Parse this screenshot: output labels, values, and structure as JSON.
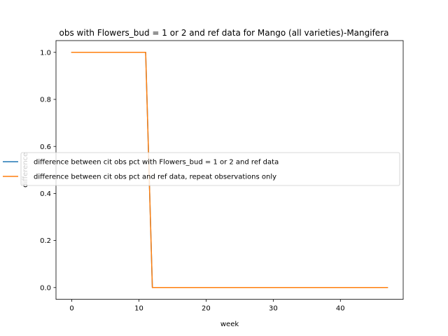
{
  "chart_data": {
    "type": "line",
    "title": "obs with Flowers_bud = 1 or 2 and ref data for Mango (all varieties)-Mangifera",
    "xlabel": "week",
    "ylabel": "difference",
    "xlim": [
      -2.35,
      49.35
    ],
    "ylim": [
      -0.05,
      1.05
    ],
    "xticks": [
      0,
      10,
      20,
      30,
      40
    ],
    "yticks": [
      0.0,
      0.2,
      0.4,
      0.6,
      0.8,
      1.0
    ],
    "xtick_labels": [
      "0",
      "10",
      "20",
      "30",
      "40"
    ],
    "ytick_labels": [
      "0.0",
      "0.2",
      "0.4",
      "0.6",
      "0.8",
      "1.0"
    ],
    "grid": false,
    "legend_position": "center-right",
    "series": [
      {
        "name": "difference between cit obs pct with Flowers_bud = 1 or 2 and ref data",
        "color": "#1f77b4",
        "x": [
          0,
          1,
          2,
          3,
          4,
          5,
          6,
          7,
          8,
          9,
          10,
          11,
          12,
          13,
          14,
          15,
          16,
          17,
          18,
          19,
          20,
          21,
          22,
          23,
          24,
          25,
          26,
          27,
          28,
          29,
          30,
          31,
          32,
          33,
          34,
          35,
          36,
          37,
          38,
          39,
          40,
          41,
          42,
          43,
          44,
          45,
          46,
          47
        ],
        "y": [
          1,
          1,
          1,
          1,
          1,
          1,
          1,
          1,
          1,
          1,
          1,
          1,
          0,
          0,
          0,
          0,
          0,
          0,
          0,
          0,
          0,
          0,
          0,
          0,
          0,
          0,
          0,
          0,
          0,
          0,
          0,
          0,
          0,
          0,
          0,
          0,
          0,
          0,
          0,
          0,
          0,
          0,
          0,
          0,
          0,
          0,
          0,
          0
        ]
      },
      {
        "name": "difference between cit obs pct and ref data, repeat observations only",
        "color": "#ff7f0e",
        "x": [
          0,
          1,
          2,
          3,
          4,
          5,
          6,
          7,
          8,
          9,
          10,
          11,
          12,
          13,
          14,
          15,
          16,
          17,
          18,
          19,
          20,
          21,
          22,
          23,
          24,
          25,
          26,
          27,
          28,
          29,
          30,
          31,
          32,
          33,
          34,
          35,
          36,
          37,
          38,
          39,
          40,
          41,
          42,
          43,
          44,
          45,
          46,
          47
        ],
        "y": [
          1,
          1,
          1,
          1,
          1,
          1,
          1,
          1,
          1,
          1,
          1,
          1,
          0,
          0,
          0,
          0,
          0,
          0,
          0,
          0,
          0,
          0,
          0,
          0,
          0,
          0,
          0,
          0,
          0,
          0,
          0,
          0,
          0,
          0,
          0,
          0,
          0,
          0,
          0,
          0,
          0,
          0,
          0,
          0,
          0,
          0,
          0,
          0
        ]
      }
    ]
  }
}
